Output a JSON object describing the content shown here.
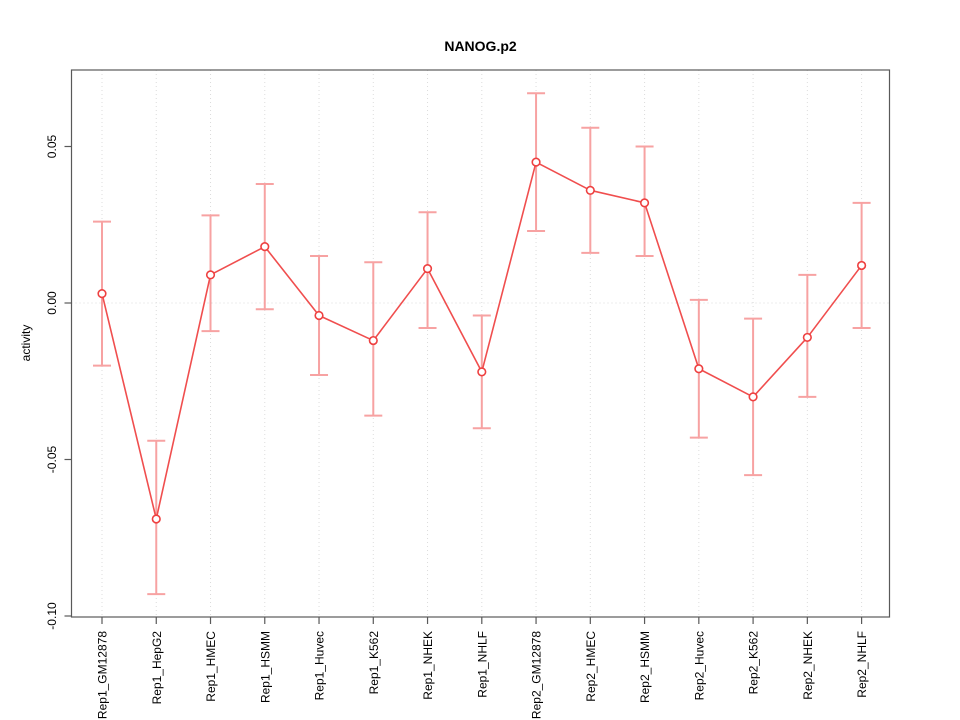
{
  "chart_data": {
    "type": "line",
    "title": "NANOG.p2",
    "xlabel": "",
    "ylabel": "activity",
    "categories": [
      "Rep1_GM12878",
      "Rep1_HepG2",
      "Rep1_HMEC",
      "Rep1_HSMM",
      "Rep1_Huvec",
      "Rep1_K562",
      "Rep1_NHEK",
      "Rep1_NHLF",
      "Rep2_GM12878",
      "Rep2_HMEC",
      "Rep2_HSMM",
      "Rep2_Huvec",
      "Rep2_K562",
      "Rep2_NHEK",
      "Rep2_NHLF"
    ],
    "series": [
      {
        "name": "activity",
        "values": [
          0.003,
          -0.069,
          0.009,
          0.018,
          -0.004,
          -0.012,
          0.011,
          -0.022,
          0.045,
          0.036,
          0.032,
          -0.021,
          -0.03,
          -0.011,
          0.012
        ],
        "upper": [
          0.026,
          -0.044,
          0.028,
          0.038,
          0.015,
          0.013,
          0.029,
          -0.004,
          0.067,
          0.056,
          0.05,
          0.001,
          -0.005,
          0.009,
          0.032
        ],
        "lower": [
          -0.02,
          -0.093,
          -0.009,
          -0.002,
          -0.023,
          -0.036,
          -0.008,
          -0.04,
          0.023,
          0.016,
          0.015,
          -0.043,
          -0.055,
          -0.03,
          -0.008
        ]
      }
    ],
    "ylim": [
      -0.1003,
      0.0744
    ],
    "yticks": [
      {
        "value": 0.05,
        "label": "0.05"
      },
      {
        "value": 0.0,
        "label": "0.00"
      },
      {
        "value": -0.05,
        "label": "-0.05"
      },
      {
        "value": -0.1,
        "label": "-0.10"
      }
    ],
    "legend": "none",
    "grid": "dotted vertical gridline at each category; dotted horizontal line at y=0",
    "marker": "open-circle",
    "error_bars": true,
    "colors": {
      "line": "#f04e4e",
      "marker_stroke": "#ee4040",
      "marker_fill": "#ffffff",
      "error_bar": "#f7a2a2",
      "grid": "#dcdcdc",
      "frame": "#595959",
      "text": "#000000",
      "background": "#ffffff"
    }
  }
}
